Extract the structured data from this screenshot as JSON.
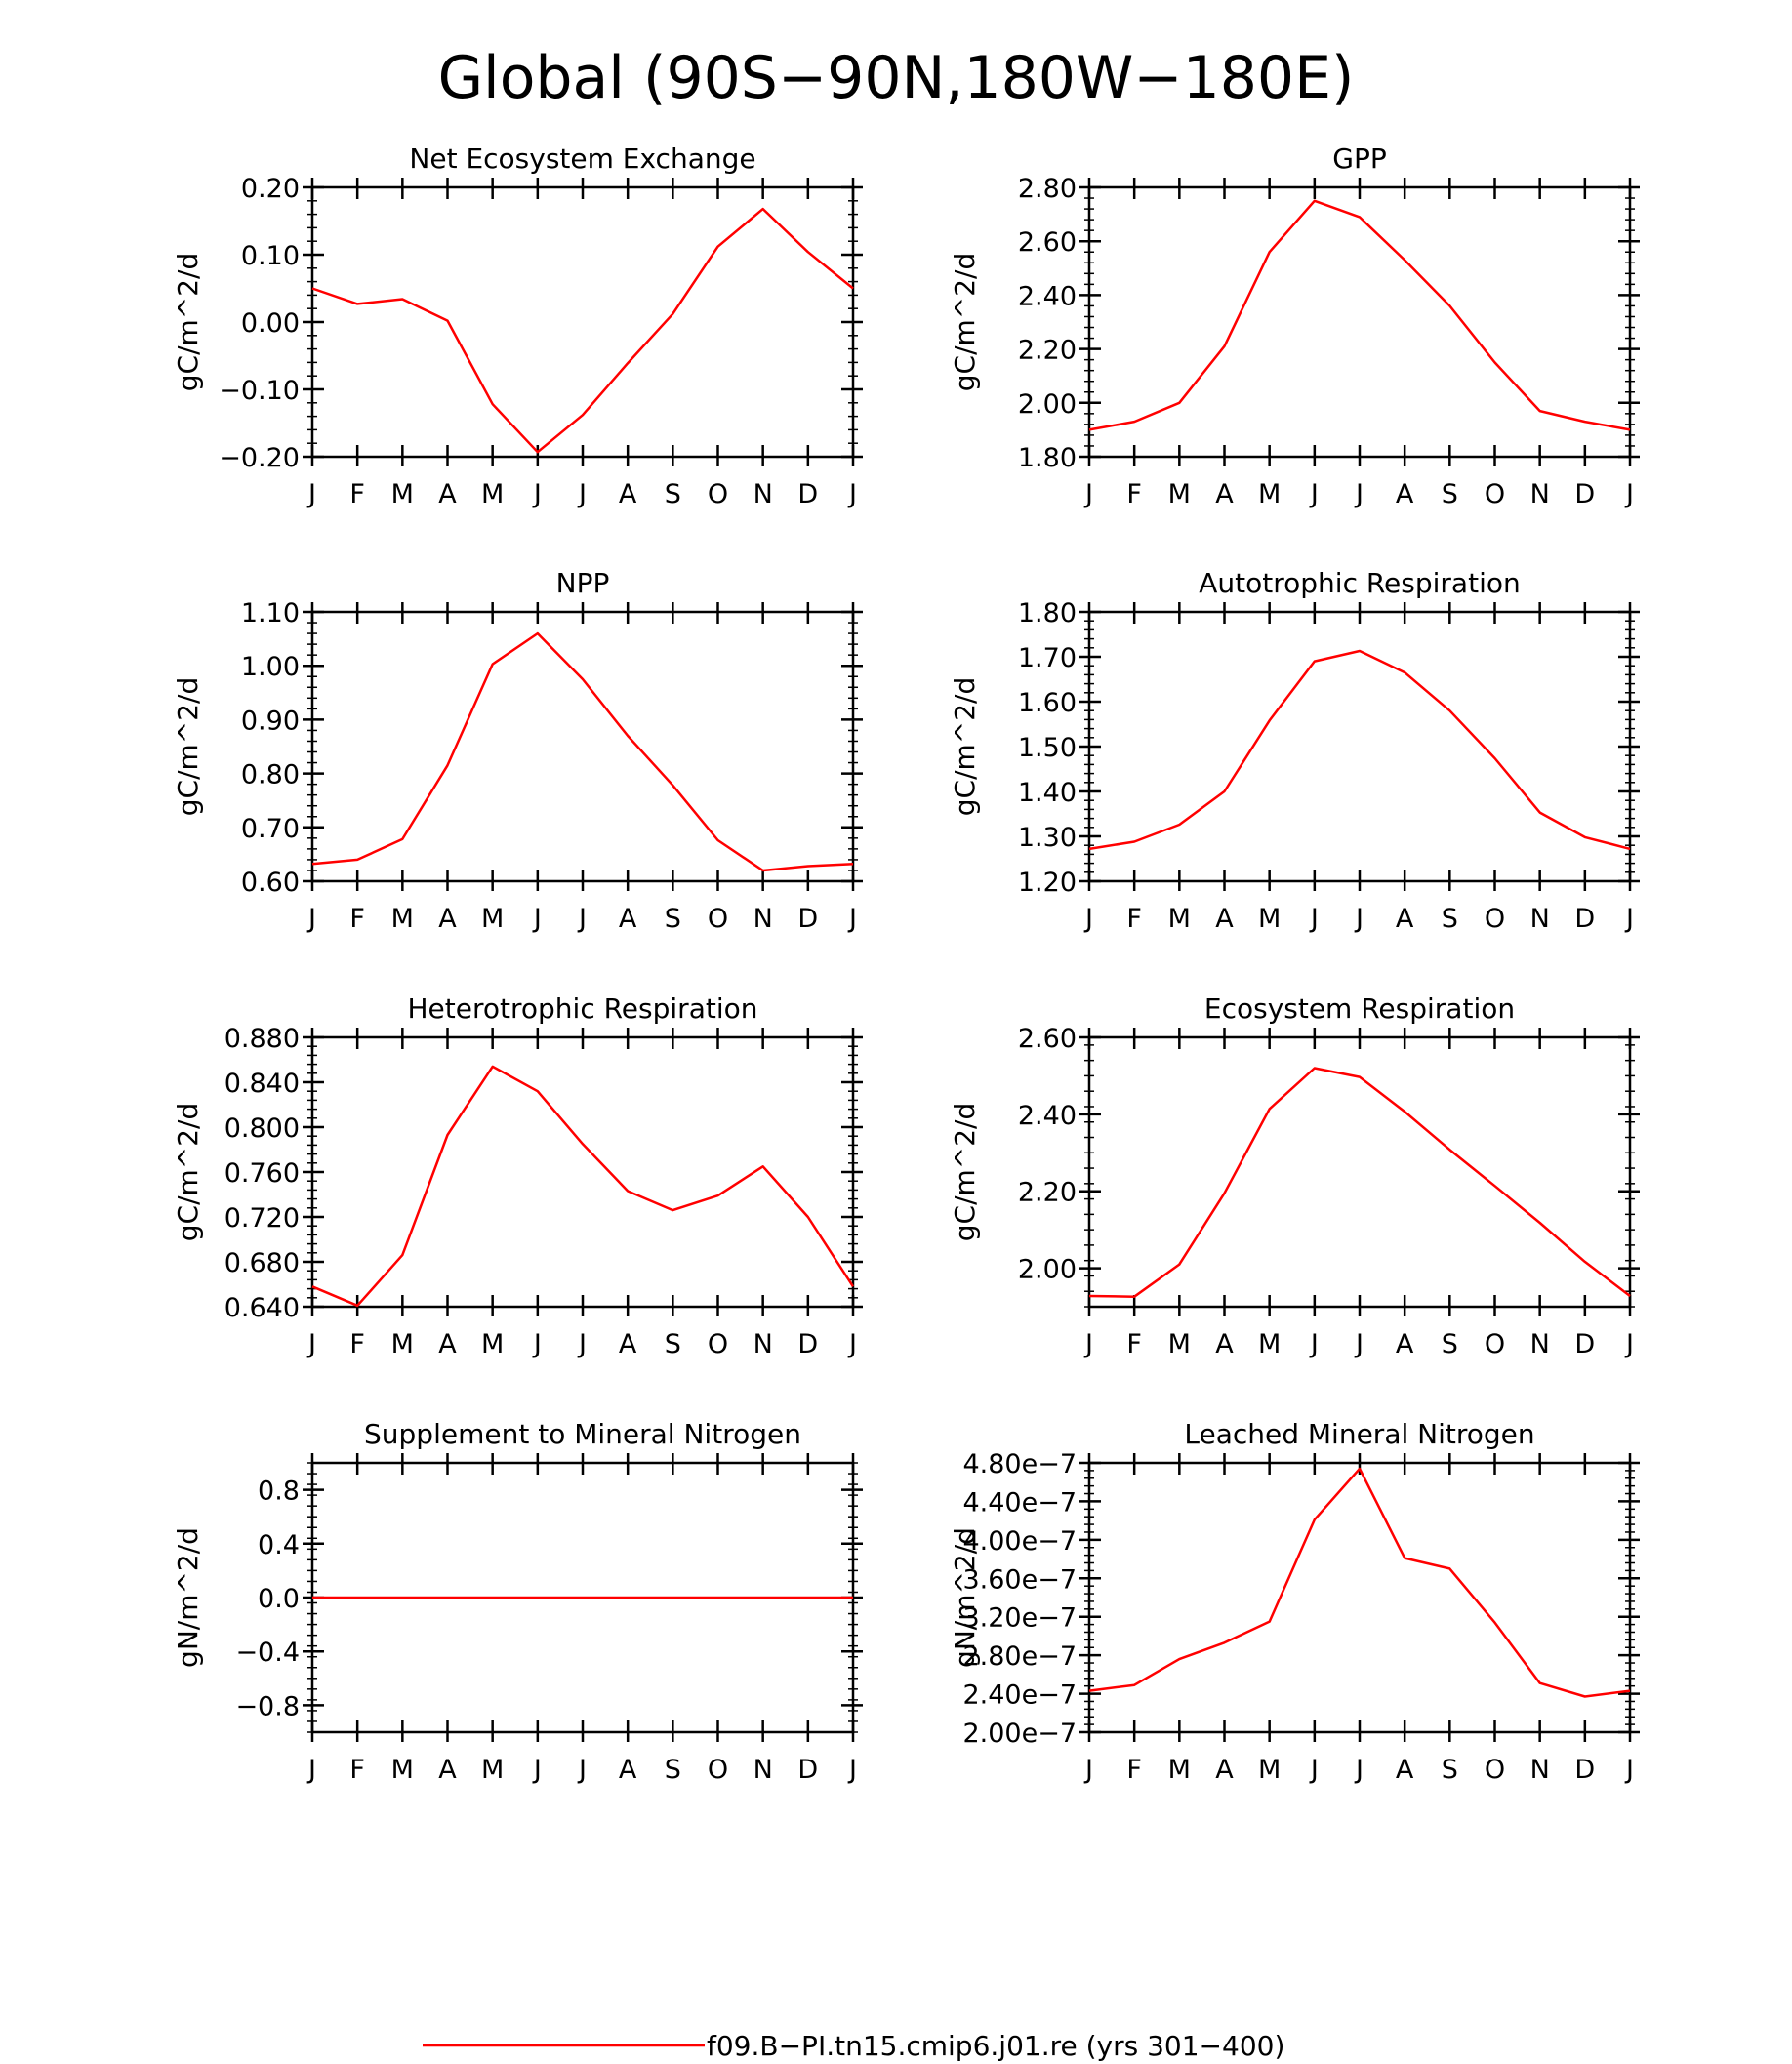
{
  "figure_title": "Global (90S−90N,180W−180E)",
  "legend": {
    "label": "f09.B−PI.tn15.cmip6.j01.re (yrs 301−400)",
    "color": "#ff0000"
  },
  "months": [
    "J",
    "F",
    "M",
    "A",
    "M",
    "J",
    "J",
    "A",
    "S",
    "O",
    "N",
    "D",
    "J"
  ],
  "chart_data": [
    {
      "type": "line",
      "title": "Net Ecosystem Exchange",
      "ylabel": "gC/m^2/d",
      "ylim": [
        -0.2,
        0.2
      ],
      "yticks": [
        -0.2,
        -0.1,
        0.0,
        0.1,
        0.2
      ],
      "ytick_labels": [
        "−0.20",
        "−0.10",
        "0.00",
        "0.10",
        "0.20"
      ],
      "categories": [
        "J",
        "F",
        "M",
        "A",
        "M",
        "J",
        "J",
        "A",
        "S",
        "O",
        "N",
        "D",
        "J"
      ],
      "series": [
        {
          "values": [
            0.05,
            0.027,
            0.034,
            0.002,
            -0.122,
            -0.193,
            -0.138,
            -0.061,
            0.012,
            0.112,
            0.168,
            0.104,
            0.05
          ]
        }
      ]
    },
    {
      "type": "line",
      "title": "GPP",
      "ylabel": "gC/m^2/d",
      "ylim": [
        1.8,
        2.8
      ],
      "yticks": [
        1.8,
        2.0,
        2.2,
        2.4,
        2.6,
        2.8
      ],
      "ytick_labels": [
        "1.80",
        "2.00",
        "2.20",
        "2.40",
        "2.60",
        "2.80"
      ],
      "categories": [
        "J",
        "F",
        "M",
        "A",
        "M",
        "J",
        "J",
        "A",
        "S",
        "O",
        "N",
        "D",
        "J"
      ],
      "series": [
        {
          "values": [
            1.9,
            1.93,
            2.0,
            2.21,
            2.56,
            2.75,
            2.69,
            2.53,
            2.36,
            2.15,
            1.97,
            1.93,
            1.9
          ]
        }
      ]
    },
    {
      "type": "line",
      "title": "NPP",
      "ylabel": "gC/m^2/d",
      "ylim": [
        0.6,
        1.1
      ],
      "yticks": [
        0.6,
        0.7,
        0.8,
        0.9,
        1.0,
        1.1
      ],
      "ytick_labels": [
        "0.60",
        "0.70",
        "0.80",
        "0.90",
        "1.00",
        "1.10"
      ],
      "categories": [
        "J",
        "F",
        "M",
        "A",
        "M",
        "J",
        "J",
        "A",
        "S",
        "O",
        "N",
        "D",
        "J"
      ],
      "series": [
        {
          "values": [
            0.632,
            0.64,
            0.678,
            0.815,
            1.003,
            1.06,
            0.975,
            0.87,
            0.778,
            0.676,
            0.62,
            0.628,
            0.632
          ]
        }
      ]
    },
    {
      "type": "line",
      "title": "Autotrophic Respiration",
      "ylabel": "gC/m^2/d",
      "ylim": [
        1.2,
        1.8
      ],
      "yticks": [
        1.2,
        1.3,
        1.4,
        1.5,
        1.6,
        1.7,
        1.8
      ],
      "ytick_labels": [
        "1.20",
        "1.30",
        "1.40",
        "1.50",
        "1.60",
        "1.70",
        "1.80"
      ],
      "categories": [
        "J",
        "F",
        "M",
        "A",
        "M",
        "J",
        "J",
        "A",
        "S",
        "O",
        "N",
        "D",
        "J"
      ],
      "series": [
        {
          "values": [
            1.272,
            1.288,
            1.326,
            1.4,
            1.558,
            1.69,
            1.713,
            1.665,
            1.58,
            1.474,
            1.353,
            1.298,
            1.272
          ]
        }
      ]
    },
    {
      "type": "line",
      "title": "Heterotrophic Respiration",
      "ylabel": "gC/m^2/d",
      "ylim": [
        0.64,
        0.88
      ],
      "yticks": [
        0.64,
        0.68,
        0.72,
        0.76,
        0.8,
        0.84,
        0.88
      ],
      "ytick_labels": [
        "0.640",
        "0.680",
        "0.720",
        "0.760",
        "0.800",
        "0.840",
        "0.880"
      ],
      "categories": [
        "J",
        "F",
        "M",
        "A",
        "M",
        "J",
        "J",
        "A",
        "S",
        "O",
        "N",
        "D",
        "J"
      ],
      "series": [
        {
          "values": [
            0.658,
            0.641,
            0.686,
            0.793,
            0.854,
            0.832,
            0.785,
            0.743,
            0.726,
            0.739,
            0.765,
            0.72,
            0.658
          ]
        }
      ]
    },
    {
      "type": "line",
      "title": "Ecosystem Respiration",
      "ylabel": "gC/m^2/d",
      "ylim": [
        1.9,
        2.6
      ],
      "yticks": [
        2.0,
        2.2,
        2.4,
        2.6
      ],
      "ytick_labels": [
        "2.00",
        "2.20",
        "2.40",
        "2.60"
      ],
      "categories": [
        "J",
        "F",
        "M",
        "A",
        "M",
        "J",
        "J",
        "A",
        "S",
        "O",
        "N",
        "D",
        "J"
      ],
      "series": [
        {
          "values": [
            1.928,
            1.926,
            2.01,
            2.195,
            2.414,
            2.52,
            2.497,
            2.407,
            2.308,
            2.214,
            2.118,
            2.017,
            1.928
          ]
        }
      ]
    },
    {
      "type": "line",
      "title": "Supplement to Mineral Nitrogen",
      "ylabel": "gN/m^2/d",
      "ylim": [
        -1.0,
        1.0
      ],
      "yticks": [
        -0.8,
        -0.4,
        0.0,
        0.4,
        0.8
      ],
      "ytick_labels": [
        "−0.8",
        "−0.4",
        "0.0",
        "0.4",
        "0.8"
      ],
      "categories": [
        "J",
        "F",
        "M",
        "A",
        "M",
        "J",
        "J",
        "A",
        "S",
        "O",
        "N",
        "D",
        "J"
      ],
      "series": [
        {
          "values": [
            0,
            0,
            0,
            0,
            0,
            0,
            0,
            0,
            0,
            0,
            0,
            0,
            0
          ]
        }
      ]
    },
    {
      "type": "line",
      "title": "Leached Mineral Nitrogen",
      "ylabel": "gN/m^2/d",
      "ylim": [
        2e-07,
        4.8e-07
      ],
      "yticks": [
        2e-07,
        2.4e-07,
        2.8e-07,
        3.2e-07,
        3.6e-07,
        4e-07,
        4.4e-07,
        4.8e-07
      ],
      "ytick_labels": [
        "2.00e−7",
        "2.40e−7",
        "2.80e−7",
        "3.20e−7",
        "3.60e−7",
        "4.00e−7",
        "4.40e−7",
        "4.80e−7"
      ],
      "categories": [
        "J",
        "F",
        "M",
        "A",
        "M",
        "J",
        "J",
        "A",
        "S",
        "O",
        "N",
        "D",
        "J"
      ],
      "series": [
        {
          "values": [
            2.43e-07,
            2.49e-07,
            2.76e-07,
            2.93e-07,
            3.15e-07,
            4.21e-07,
            4.74e-07,
            3.81e-07,
            3.7e-07,
            3.14e-07,
            2.51e-07,
            2.37e-07,
            2.43e-07
          ]
        }
      ]
    }
  ]
}
